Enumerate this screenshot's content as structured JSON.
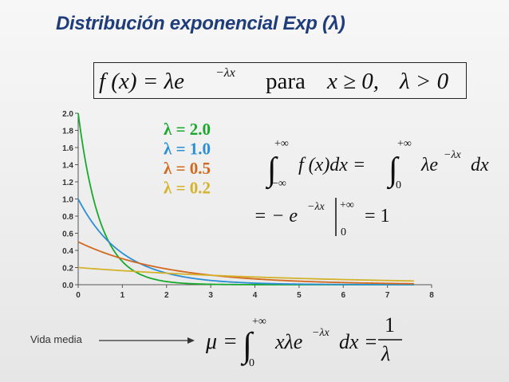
{
  "title": "Distribución exponencial Exp (λ)",
  "pdf_formula": {
    "lhs": "f (x) = λe",
    "exp": "−λx",
    "para": "para",
    "cond1": "x ≥ 0,",
    "cond2": "λ > 0"
  },
  "integral_formula": {
    "upper": "+∞",
    "lower_left": "−∞",
    "lower_right": "0",
    "left_body": "f (x)dx =",
    "right_body_a": "λe",
    "right_exp": "−λx",
    "right_body_b": "dx",
    "line2_a": "= − e",
    "line2_exp": "−λx",
    "line2_eval_upper": "+∞",
    "line2_eval_lower": "0",
    "line2_result": "= 1"
  },
  "mean": {
    "label": "Vida media",
    "mu": "μ =",
    "upper": "+∞",
    "lower": "0",
    "body_a": "xλe",
    "body_exp": "−λx",
    "body_b": "dx =",
    "frac_num": "1",
    "frac_den": "λ"
  },
  "chart_data": {
    "type": "line",
    "title": "",
    "xlabel": "",
    "ylabel": "",
    "xlim": [
      0,
      8
    ],
    "ylim": [
      0,
      2.0
    ],
    "x_ticks": [
      "0",
      "1",
      "2",
      "3",
      "4",
      "5",
      "6",
      "7",
      "8"
    ],
    "y_ticks": [
      "0.0",
      "0.2",
      "0.4",
      "0.6",
      "0.8",
      "1.0",
      "1.2",
      "1.4",
      "1.6",
      "1.8",
      "2.0"
    ],
    "x_range_plotted": [
      0,
      7.6
    ],
    "series": [
      {
        "name": "λ = 2.0",
        "lambda": 2.0,
        "color": "#1aa82d"
      },
      {
        "name": "λ = 1.0",
        "lambda": 1.0,
        "color": "#2b8fd6"
      },
      {
        "name": "λ = 0.5",
        "lambda": 0.5,
        "color": "#d2691e"
      },
      {
        "name": "λ = 0.2",
        "lambda": 0.2,
        "color": "#d4b22c"
      }
    ]
  }
}
